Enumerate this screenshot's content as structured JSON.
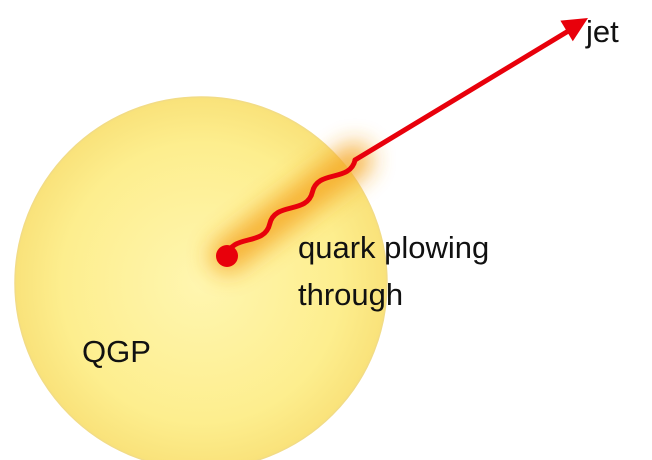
{
  "labels": {
    "jet": "jet",
    "process": [
      "quark plowing",
      "through"
    ],
    "medium": "QGP"
  }
}
